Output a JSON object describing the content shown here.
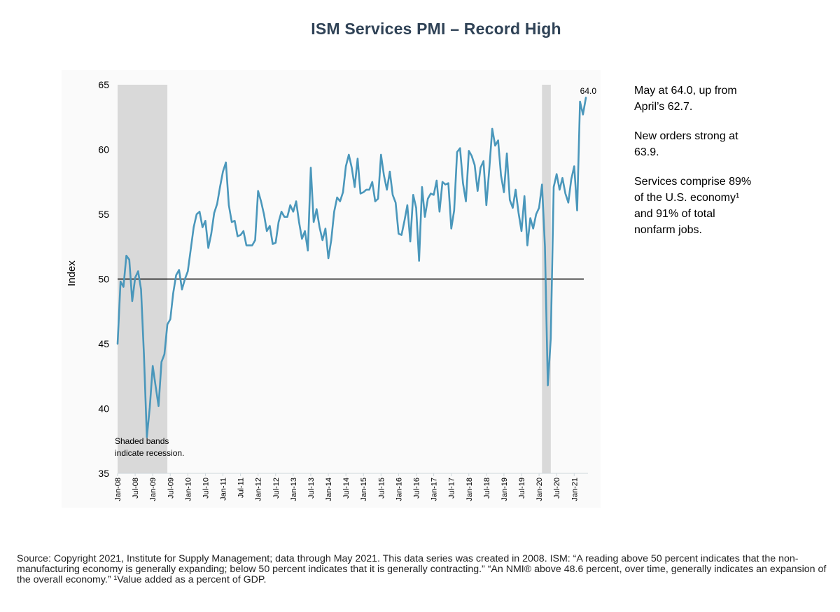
{
  "title": "ISM Services PMI – Record High",
  "notes": [
    "May at 64.0, up from April’s 62.7.",
    "New orders strong at 63.9.",
    "Services comprise 89% of the U.S. economy¹ and 91% of total nonfarm jobs."
  ],
  "source": "Source: Copyright 2021, Institute for Supply Management; data through May 2021. This data series was created in 2008. ISM: “A reading above 50 percent indicates that the non-manufacturing economy is generally expanding; below 50 percent indicates that it is generally contracting.” “An NMI® above 48.6 percent, over time, generally indicates an expansion of the overall economy.” ¹Value added as a percent of GDP.",
  "colors": {
    "line": "#4a97bb",
    "band": "#d9d9d9",
    "reference": "#000000",
    "title": "#2f4256"
  },
  "chart_data": {
    "type": "line",
    "ylabel": "Index",
    "ylim": [
      35,
      65
    ],
    "yticks": [
      35,
      40,
      45,
      50,
      55,
      60,
      65
    ],
    "x_start": "2008-01",
    "xtick_labels": [
      "Jan-08",
      "Jul-08",
      "Jan-09",
      "Jul-09",
      "Jan-10",
      "Jul-10",
      "Jan-11",
      "Jul-11",
      "Jan-12",
      "Jul-12",
      "Jan-13",
      "Jul-13",
      "Jan-14",
      "Jul-14",
      "Jan-15",
      "Jul-15",
      "Jan-16",
      "Jul-16",
      "Jan-17",
      "Jul-17",
      "Jan-18",
      "Jul-18",
      "Jan-19",
      "Jul-19",
      "Jan-20",
      "Jul-20",
      "Jan-21"
    ],
    "reference_line": 50,
    "recession_bands": [
      [
        "2008-01",
        "2009-06"
      ],
      [
        "2020-02",
        "2020-05"
      ]
    ],
    "last_value_label": "64.0",
    "annotation": [
      "Shaded bands",
      "indicate recession."
    ],
    "values": [
      45.0,
      49.8,
      49.4,
      51.8,
      51.5,
      48.3,
      50.1,
      50.6,
      49.2,
      44.2,
      37.8,
      40.1,
      43.3,
      41.7,
      40.2,
      43.6,
      44.2,
      46.5,
      46.9,
      48.9,
      50.3,
      50.7,
      49.2,
      50.0,
      50.6,
      52.3,
      54.0,
      55.0,
      55.2,
      54.0,
      54.5,
      52.4,
      53.5,
      55.1,
      55.8,
      57.1,
      58.3,
      59.0,
      55.7,
      54.4,
      54.5,
      53.3,
      53.4,
      53.7,
      52.6,
      52.6,
      52.6,
      53.0,
      56.8,
      56.0,
      55.0,
      53.7,
      54.1,
      52.7,
      52.8,
      54.4,
      55.2,
      54.8,
      54.8,
      55.7,
      55.2,
      56.0,
      54.4,
      53.1,
      53.7,
      52.2,
      58.6,
      54.4,
      55.4,
      54.0,
      53.0,
      53.9,
      51.6,
      53.0,
      55.2,
      56.3,
      56.0,
      56.7,
      58.7,
      59.6,
      58.6,
      57.1,
      59.3,
      56.6,
      56.7,
      56.9,
      56.9,
      57.5,
      56.0,
      56.2,
      59.6,
      58.0,
      56.9,
      58.3,
      56.5,
      55.9,
      53.5,
      53.4,
      54.5,
      55.7,
      52.9,
      56.5,
      55.5,
      51.4,
      57.1,
      54.8,
      56.2,
      56.6,
      56.5,
      57.6,
      55.2,
      57.5,
      57.3,
      57.4,
      53.9,
      55.3,
      59.8,
      60.1,
      57.4,
      56.0,
      59.9,
      59.5,
      58.8,
      56.8,
      58.6,
      59.1,
      55.7,
      58.5,
      61.6,
      60.3,
      60.7,
      58.0,
      56.7,
      59.7,
      56.1,
      55.5,
      56.9,
      55.1,
      53.7,
      56.4,
      52.6,
      54.7,
      53.9,
      55.0,
      55.5,
      57.3,
      52.5,
      41.8,
      45.4,
      57.1,
      58.1,
      56.9,
      57.8,
      56.6,
      55.9,
      57.7,
      58.7,
      55.3,
      63.7,
      62.7,
      64.0
    ]
  }
}
